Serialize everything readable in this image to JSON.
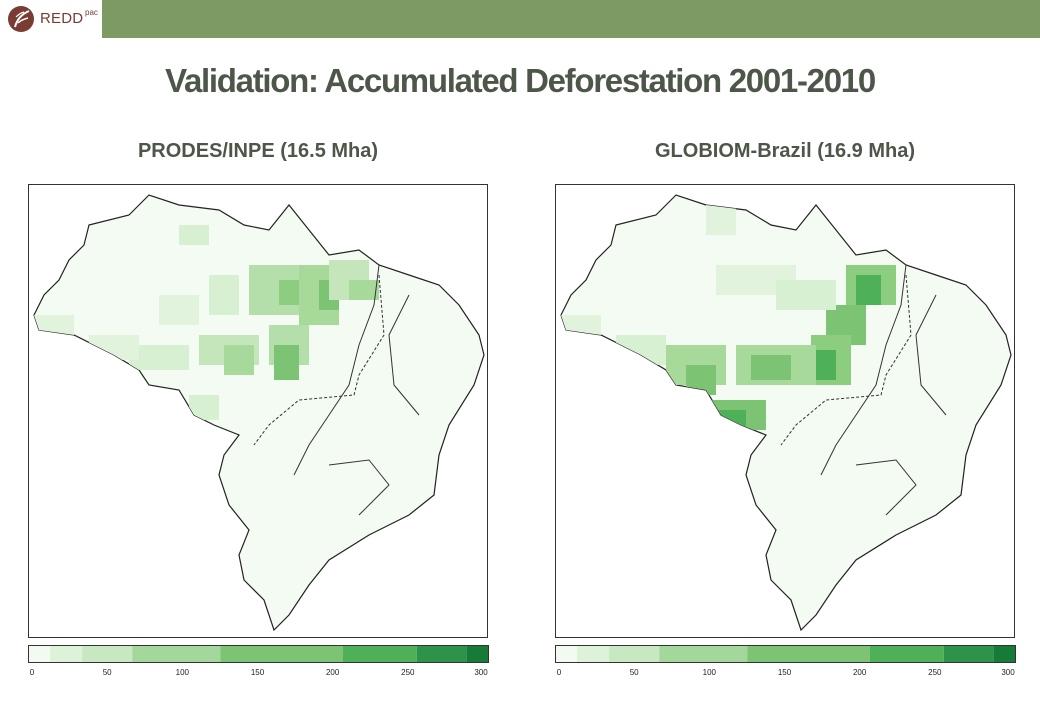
{
  "header": {
    "logo_text": "REDD",
    "logo_sup": "pac",
    "bar_color": "#7d9a63"
  },
  "title": "Validation: Accumulated Deforestation 2001-2010",
  "panels": [
    {
      "subtitle": "PRODES/INPE (16.5 Mha)"
    },
    {
      "subtitle": "GLOBIOM-Brazil (16.9 Mha)"
    }
  ],
  "colorbar": {
    "ticks": [
      "0",
      "50",
      "100",
      "150",
      "200",
      "250",
      "300"
    ],
    "colors": [
      "#f3fbf1",
      "#def2da",
      "#c7e8c0",
      "#a3d79b",
      "#7cc473",
      "#4fb05a",
      "#2d934a",
      "#167a38",
      "#006127",
      "#00441b"
    ]
  }
}
